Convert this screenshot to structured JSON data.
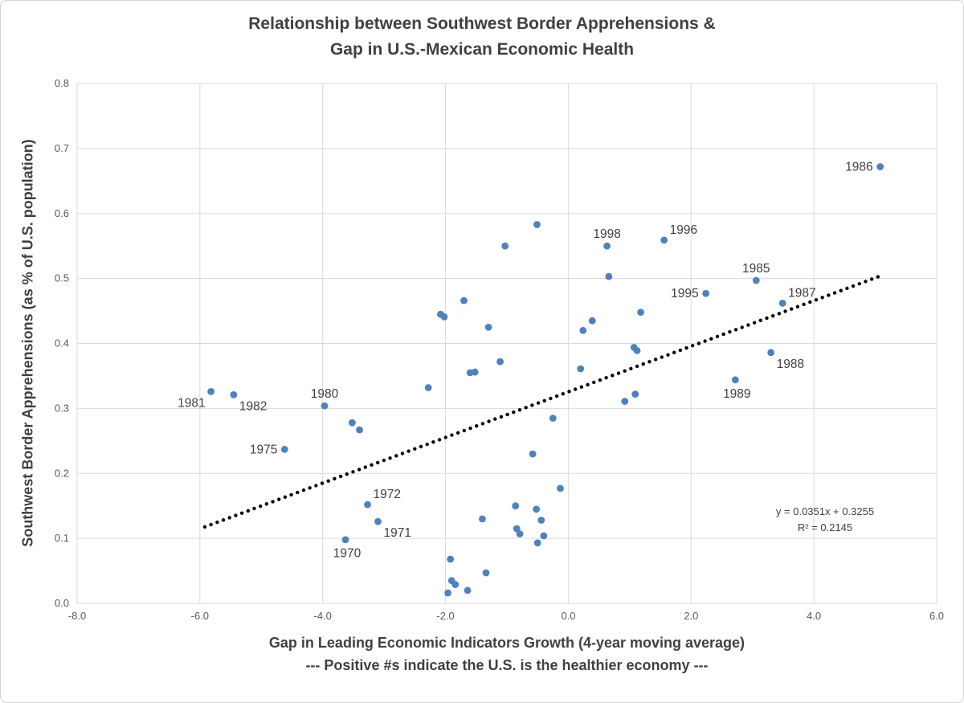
{
  "style": {
    "point_color": "#4f81bd",
    "grid_color": "#d9d9d9",
    "trend_color": "#000000",
    "text_color": "#404040",
    "tick_color": "#595959"
  },
  "chart_data": {
    "type": "scatter",
    "title": "Relationship between Southwest Border Apprehensions & Gap in U.S.-Mexican Economic Health",
    "title_line1": "Relationship between Southwest Border Apprehensions &",
    "title_line2": "Gap in U.S.-Mexican Economic Health",
    "xlabel": "Gap in Leading Economic Indicators Growth (4-year moving average)",
    "xlabel_note": "--- Positive #s indicate the U.S. is the healthier economy ---",
    "ylabel": "Southwest Border Apprehensions (as % of U.S. population)",
    "xlim": [
      -8,
      6
    ],
    "ylim": [
      0,
      0.8
    ],
    "grid": true,
    "x_ticks": [
      -8,
      -6,
      -4,
      -2,
      0,
      2,
      4,
      6
    ],
    "x_tick_labels": [
      "-8.0",
      "-6.0",
      "-4.0",
      "-2.0",
      "0.0",
      "2.0",
      "4.0",
      "6.0"
    ],
    "y_ticks": [
      0,
      0.1,
      0.2,
      0.3,
      0.4,
      0.5,
      0.6,
      0.7,
      0.8
    ],
    "y_tick_labels": [
      "0.0",
      "0.1",
      "0.2",
      "0.3",
      "0.4",
      "0.5",
      "0.6",
      "0.7",
      "0.8"
    ],
    "trendline": {
      "slope": 0.0351,
      "intercept": 0.3255,
      "x_start": -5.92,
      "x_end": 5.12,
      "equation": "y = 0.0351x + 0.3255",
      "r2_label": "R² = 0.2145"
    },
    "points": [
      {
        "x": -5.82,
        "y": 0.326,
        "label": "1981",
        "pos": "below-left"
      },
      {
        "x": -5.45,
        "y": 0.321,
        "label": "1982",
        "pos": "below-right"
      },
      {
        "x": -4.62,
        "y": 0.237,
        "label": "1975",
        "pos": "left"
      },
      {
        "x": -3.97,
        "y": 0.304,
        "label": "1980",
        "pos": "above"
      },
      {
        "x": -3.63,
        "y": 0.098,
        "label": "1970",
        "pos": "below"
      },
      {
        "x": -3.52,
        "y": 0.278
      },
      {
        "x": -3.4,
        "y": 0.267
      },
      {
        "x": -3.27,
        "y": 0.152,
        "label": "1972",
        "pos": "above-right"
      },
      {
        "x": -3.1,
        "y": 0.126,
        "label": "1971",
        "pos": "below-right"
      },
      {
        "x": -2.28,
        "y": 0.332
      },
      {
        "x": -2.08,
        "y": 0.445
      },
      {
        "x": -2.02,
        "y": 0.441
      },
      {
        "x": -1.96,
        "y": 0.016
      },
      {
        "x": -1.92,
        "y": 0.068
      },
      {
        "x": -1.9,
        "y": 0.035
      },
      {
        "x": -1.84,
        "y": 0.029
      },
      {
        "x": -1.7,
        "y": 0.466
      },
      {
        "x": -1.64,
        "y": 0.02
      },
      {
        "x": -1.6,
        "y": 0.355
      },
      {
        "x": -1.52,
        "y": 0.356
      },
      {
        "x": -1.4,
        "y": 0.13
      },
      {
        "x": -1.34,
        "y": 0.047
      },
      {
        "x": -1.3,
        "y": 0.425
      },
      {
        "x": -1.11,
        "y": 0.372
      },
      {
        "x": -1.03,
        "y": 0.55
      },
      {
        "x": -0.86,
        "y": 0.15
      },
      {
        "x": -0.84,
        "y": 0.115
      },
      {
        "x": -0.79,
        "y": 0.107
      },
      {
        "x": -0.58,
        "y": 0.23
      },
      {
        "x": -0.52,
        "y": 0.145
      },
      {
        "x": -0.51,
        "y": 0.583
      },
      {
        "x": -0.5,
        "y": 0.093
      },
      {
        "x": -0.44,
        "y": 0.128
      },
      {
        "x": -0.4,
        "y": 0.104
      },
      {
        "x": -0.25,
        "y": 0.285
      },
      {
        "x": -0.13,
        "y": 0.177
      },
      {
        "x": 0.2,
        "y": 0.361
      },
      {
        "x": 0.24,
        "y": 0.42
      },
      {
        "x": 0.39,
        "y": 0.435
      },
      {
        "x": 0.63,
        "y": 0.55,
        "label": "1998",
        "pos": "above"
      },
      {
        "x": 0.66,
        "y": 0.503
      },
      {
        "x": 0.92,
        "y": 0.311
      },
      {
        "x": 1.07,
        "y": 0.394
      },
      {
        "x": 1.09,
        "y": 0.322
      },
      {
        "x": 1.12,
        "y": 0.389
      },
      {
        "x": 1.18,
        "y": 0.448
      },
      {
        "x": 1.56,
        "y": 0.559,
        "label": "1996",
        "pos": "above-right"
      },
      {
        "x": 2.24,
        "y": 0.477,
        "label": "1995",
        "pos": "left"
      },
      {
        "x": 2.72,
        "y": 0.344,
        "label": "1989",
        "pos": "below"
      },
      {
        "x": 3.06,
        "y": 0.497,
        "label": "1985",
        "pos": "above"
      },
      {
        "x": 3.3,
        "y": 0.386,
        "label": "1988",
        "pos": "below-right"
      },
      {
        "x": 3.49,
        "y": 0.462,
        "label": "1987",
        "pos": "above-right"
      },
      {
        "x": 5.08,
        "y": 0.672,
        "label": "1986",
        "pos": "left"
      }
    ]
  }
}
